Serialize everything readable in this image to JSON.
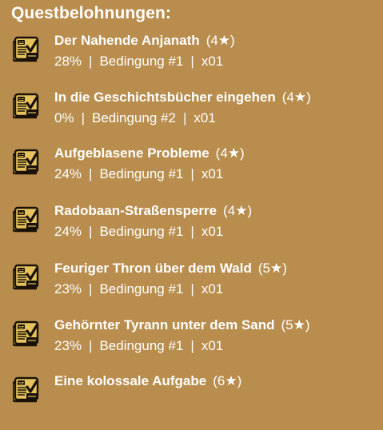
{
  "header": {
    "title": "Questbelohnungen:"
  },
  "icon": {
    "name": "quest-scroll-icon",
    "color": "#1a1208"
  },
  "separator": "|",
  "quests": [
    {
      "title": "Der Nahende Anjanath",
      "stars": "(4★)",
      "percent": "28%",
      "condition": "Bedingung #1",
      "count": "x01"
    },
    {
      "title": "In die Geschichtsbücher eingehen",
      "stars": "(4★)",
      "percent": "0%",
      "condition": "Bedingung #2",
      "count": "x01"
    },
    {
      "title": "Aufgeblasene Probleme",
      "stars": "(4★)",
      "percent": "24%",
      "condition": "Bedingung #1",
      "count": "x01"
    },
    {
      "title": "Radobaan-Straßensperre",
      "stars": "(4★)",
      "percent": "24%",
      "condition": "Bedingung #1",
      "count": "x01"
    },
    {
      "title": "Feuriger Thron über dem Wald",
      "stars": "(5★)",
      "percent": "23%",
      "condition": "Bedingung #1",
      "count": "x01"
    },
    {
      "title": "Gehörnter Tyrann unter dem Sand",
      "stars": "(5★)",
      "percent": "23%",
      "condition": "Bedingung #1",
      "count": "x01"
    },
    {
      "title": "Eine kolossale Aufgabe",
      "stars": "(6★)",
      "percent": "",
      "condition": "",
      "count": ""
    }
  ]
}
